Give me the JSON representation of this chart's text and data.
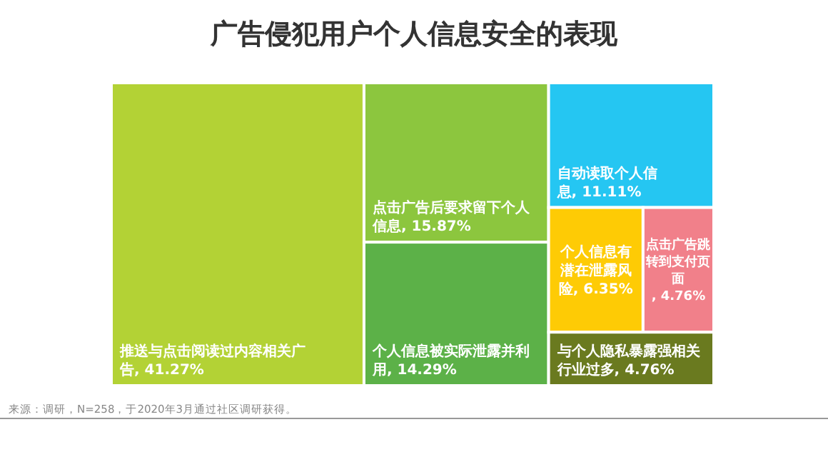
{
  "chart_data": {
    "type": "other",
    "title": "广告侵犯用户个人信息安全的表现",
    "categories": [
      "推送与点击阅读过内容相关广告",
      "点击广告后要求留下个人信息",
      "个人信息被实际泄露并利用",
      "自动读取个人信息",
      "个人信息有潜在泄露风险",
      "点击广告跳转到支付页面",
      "与个人隐私暴露强相关行业过多"
    ],
    "values": [
      41.27,
      15.87,
      14.29,
      11.11,
      6.35,
      4.76,
      4.76
    ],
    "value_labels": [
      ", 41.27%",
      ", 15.87%",
      ", 14.29%",
      ", 11.11%",
      ", 6.35%",
      ", 4.76%",
      ", 4.76%"
    ],
    "colors": [
      "#b3d235",
      "#8cc63e",
      "#5cb148",
      "#25c6f2",
      "#fecb05",
      "#f1808a",
      "#6a7a1f"
    ],
    "annotations": [
      "来源：调研，N=258，于2020年3月通过社区调研获得。"
    ]
  }
}
